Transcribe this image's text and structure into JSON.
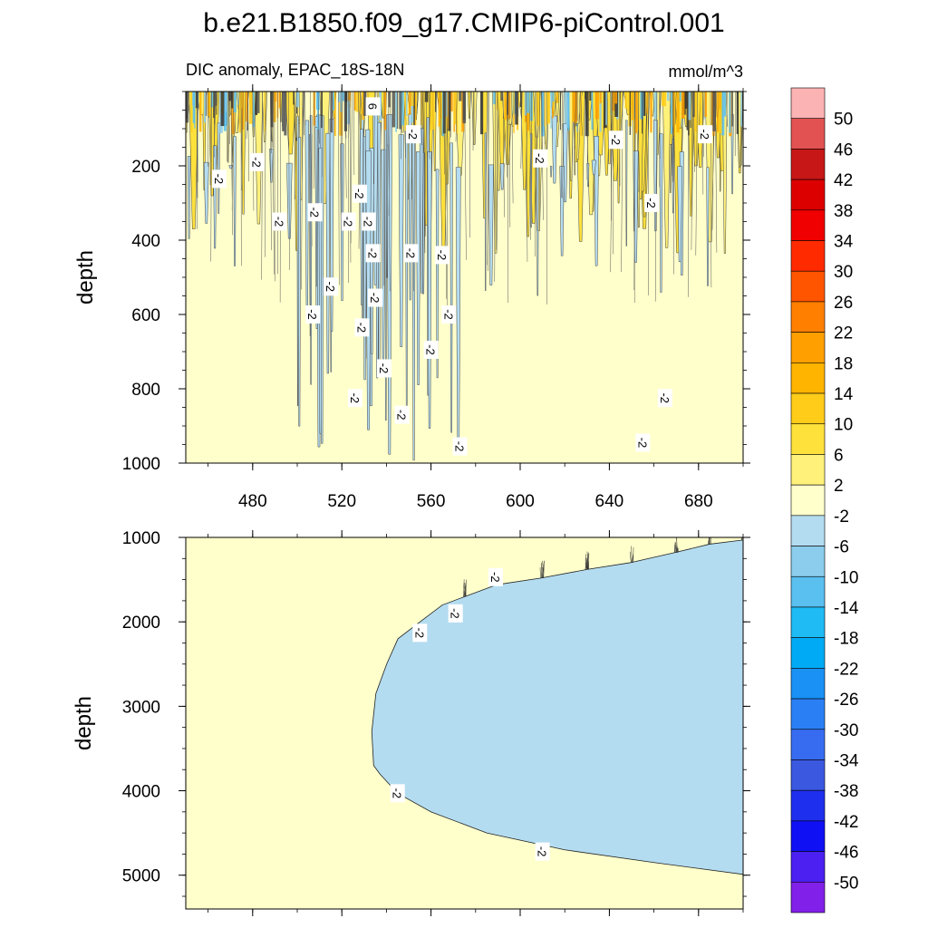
{
  "chart_data": {
    "type": "contour",
    "title": "b.e21.B1850.f09_g17.CMIP6-piControl.001",
    "subtitle_left": "DIC anomaly, EPAC_18S-18N",
    "units": "mmol/m^3",
    "ylabel": "depth",
    "x_range": [
      450,
      700
    ],
    "x_ticks": [
      480,
      520,
      560,
      600,
      640,
      680
    ],
    "panels": [
      {
        "name": "upper",
        "ylim": [
          0,
          1000
        ],
        "y_ticks": [
          200,
          400,
          600,
          800,
          1000
        ],
        "contour_labels": [
          {
            "x": 534,
            "y": 40,
            "text": "6"
          },
          {
            "x": 552,
            "y": 115,
            "text": "-2"
          },
          {
            "x": 482,
            "y": 190,
            "text": "-2"
          },
          {
            "x": 465,
            "y": 235,
            "text": "-2"
          },
          {
            "x": 609,
            "y": 180,
            "text": "-2"
          },
          {
            "x": 643,
            "y": 130,
            "text": "-2"
          },
          {
            "x": 683,
            "y": 115,
            "text": "-2"
          },
          {
            "x": 659,
            "y": 300,
            "text": "-2"
          },
          {
            "x": 528,
            "y": 275,
            "text": "-2"
          },
          {
            "x": 508,
            "y": 325,
            "text": "-2"
          },
          {
            "x": 492,
            "y": 350,
            "text": "-2"
          },
          {
            "x": 523,
            "y": 350,
            "text": "-2"
          },
          {
            "x": 532,
            "y": 350,
            "text": "-2"
          },
          {
            "x": 534,
            "y": 435,
            "text": "-2"
          },
          {
            "x": 551,
            "y": 435,
            "text": "-2"
          },
          {
            "x": 565,
            "y": 440,
            "text": "-2"
          },
          {
            "x": 515,
            "y": 525,
            "text": "-2"
          },
          {
            "x": 535,
            "y": 555,
            "text": "-2"
          },
          {
            "x": 507,
            "y": 600,
            "text": "-2"
          },
          {
            "x": 568,
            "y": 600,
            "text": "-2"
          },
          {
            "x": 529,
            "y": 635,
            "text": "-2"
          },
          {
            "x": 560,
            "y": 695,
            "text": "-2"
          },
          {
            "x": 539,
            "y": 745,
            "text": "-2"
          },
          {
            "x": 526,
            "y": 825,
            "text": "-2"
          },
          {
            "x": 665,
            "y": 825,
            "text": "-2"
          },
          {
            "x": 547,
            "y": 870,
            "text": "-2"
          },
          {
            "x": 655,
            "y": 945,
            "text": "-2"
          },
          {
            "x": 573,
            "y": 955,
            "text": "-2"
          }
        ]
      },
      {
        "name": "lower",
        "ylim": [
          1000,
          5400
        ],
        "y_ticks": [
          1000,
          2000,
          3000,
          4000,
          5000
        ],
        "contour_labels": [
          {
            "x": 589,
            "y": 1470,
            "text": "-2"
          },
          {
            "x": 571,
            "y": 1900,
            "text": "-2"
          },
          {
            "x": 555,
            "y": 2130,
            "text": "-2"
          },
          {
            "x": 545,
            "y": 4030,
            "text": "-2"
          },
          {
            "x": 610,
            "y": 4720,
            "text": "-2"
          }
        ]
      }
    ],
    "colorbar": {
      "labels": [
        "50",
        "46",
        "42",
        "38",
        "34",
        "30",
        "26",
        "22",
        "18",
        "14",
        "10",
        "6",
        "2",
        "-2",
        "-6",
        "-10",
        "-14",
        "-18",
        "-22",
        "-26",
        "-30",
        "-34",
        "-38",
        "-42",
        "-46",
        "-50"
      ],
      "colors": [
        "#fcb3b3",
        "#e25252",
        "#c81717",
        "#dd0000",
        "#f00000",
        "#ff2a00",
        "#ff5500",
        "#ff7f00",
        "#ff9f00",
        "#ffb400",
        "#ffcc1a",
        "#ffe13c",
        "#fff17a",
        "#ffffcc",
        "#b4dcf0",
        "#8cccec",
        "#5ac0f0",
        "#1ebbf4",
        "#00aaf5",
        "#1991f5",
        "#2a7ff5",
        "#376cf0",
        "#3a58e0",
        "#1f2fee",
        "#1010f5",
        "#4b20f0",
        "#8020e8"
      ]
    }
  }
}
